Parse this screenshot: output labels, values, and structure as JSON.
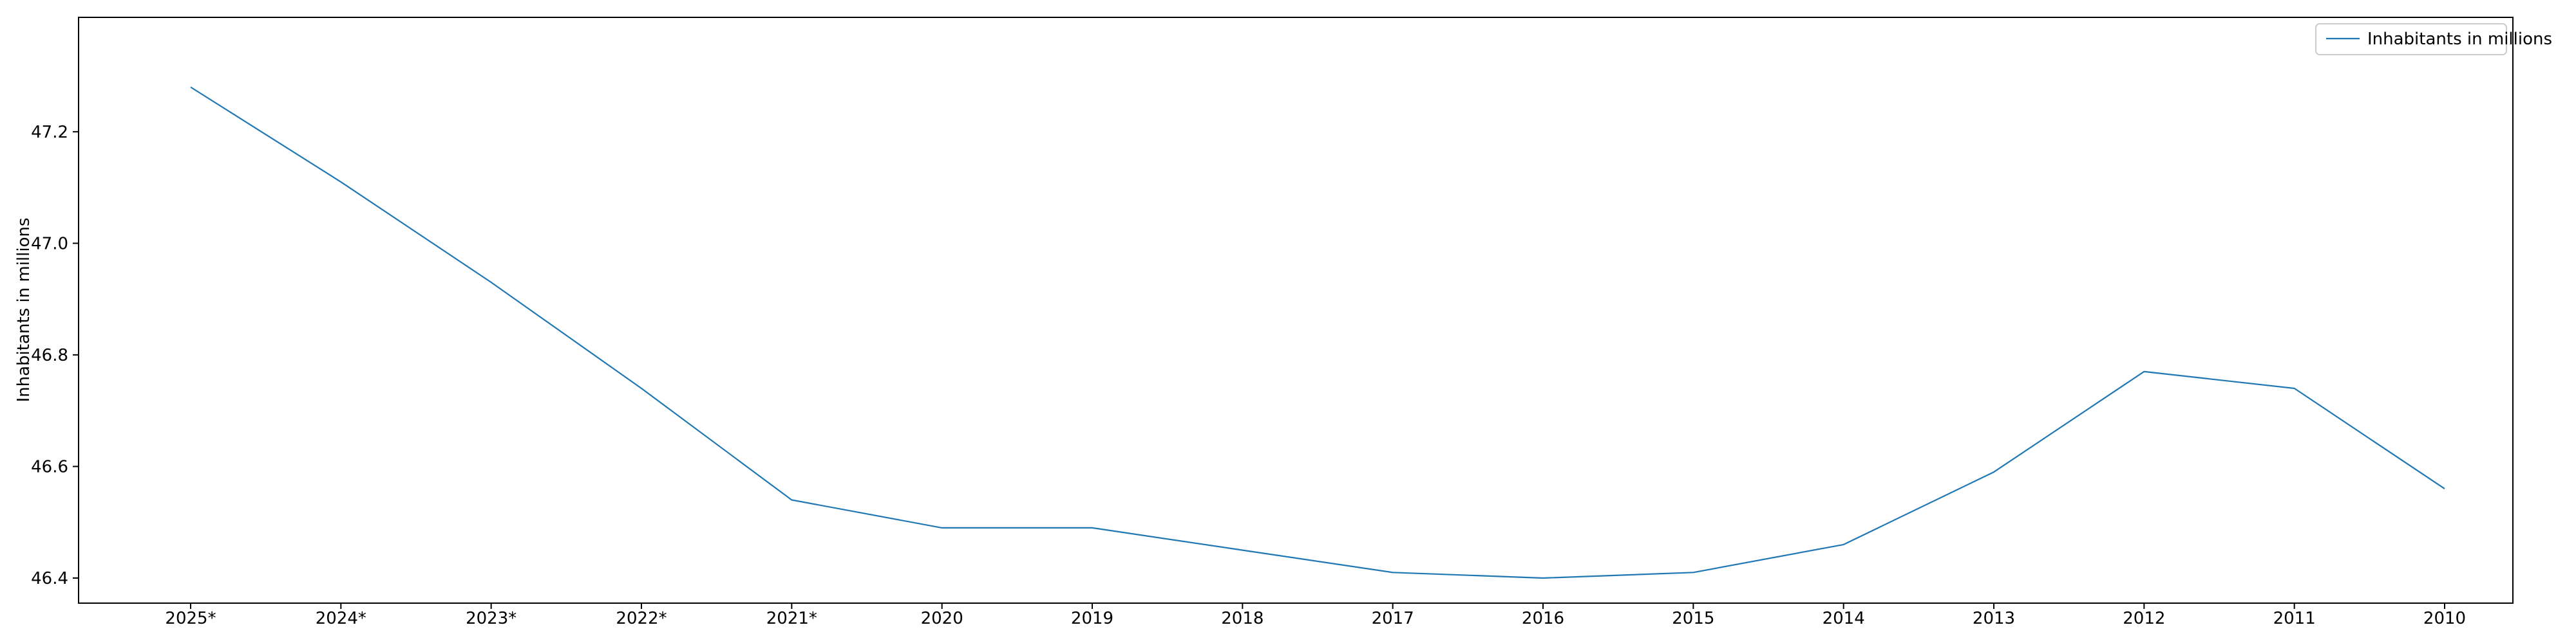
{
  "chart_data": {
    "type": "line",
    "categories": [
      "2025*",
      "2024*",
      "2023*",
      "2022*",
      "2021*",
      "2020",
      "2019",
      "2018",
      "2017",
      "2016",
      "2015",
      "2014",
      "2013",
      "2012",
      "2011",
      "2010"
    ],
    "series": [
      {
        "name": "Inhabitants in millions",
        "values": [
          47.28,
          47.11,
          46.93,
          46.74,
          46.54,
          46.49,
          46.49,
          46.45,
          46.41,
          46.4,
          46.41,
          46.46,
          46.59,
          46.77,
          46.74,
          46.56
        ],
        "color": "#1f77b4"
      }
    ],
    "title": "",
    "xlabel": "",
    "ylabel": "Inhabitants in millions",
    "ylim": [
      46.355,
      47.405
    ],
    "yticks": [
      46.4,
      46.6,
      46.8,
      47.0,
      47.2
    ],
    "ytick_labels": [
      "46.4",
      "46.6",
      "46.8",
      "47.0",
      "47.2"
    ],
    "grid": false,
    "legend": "top-right"
  }
}
